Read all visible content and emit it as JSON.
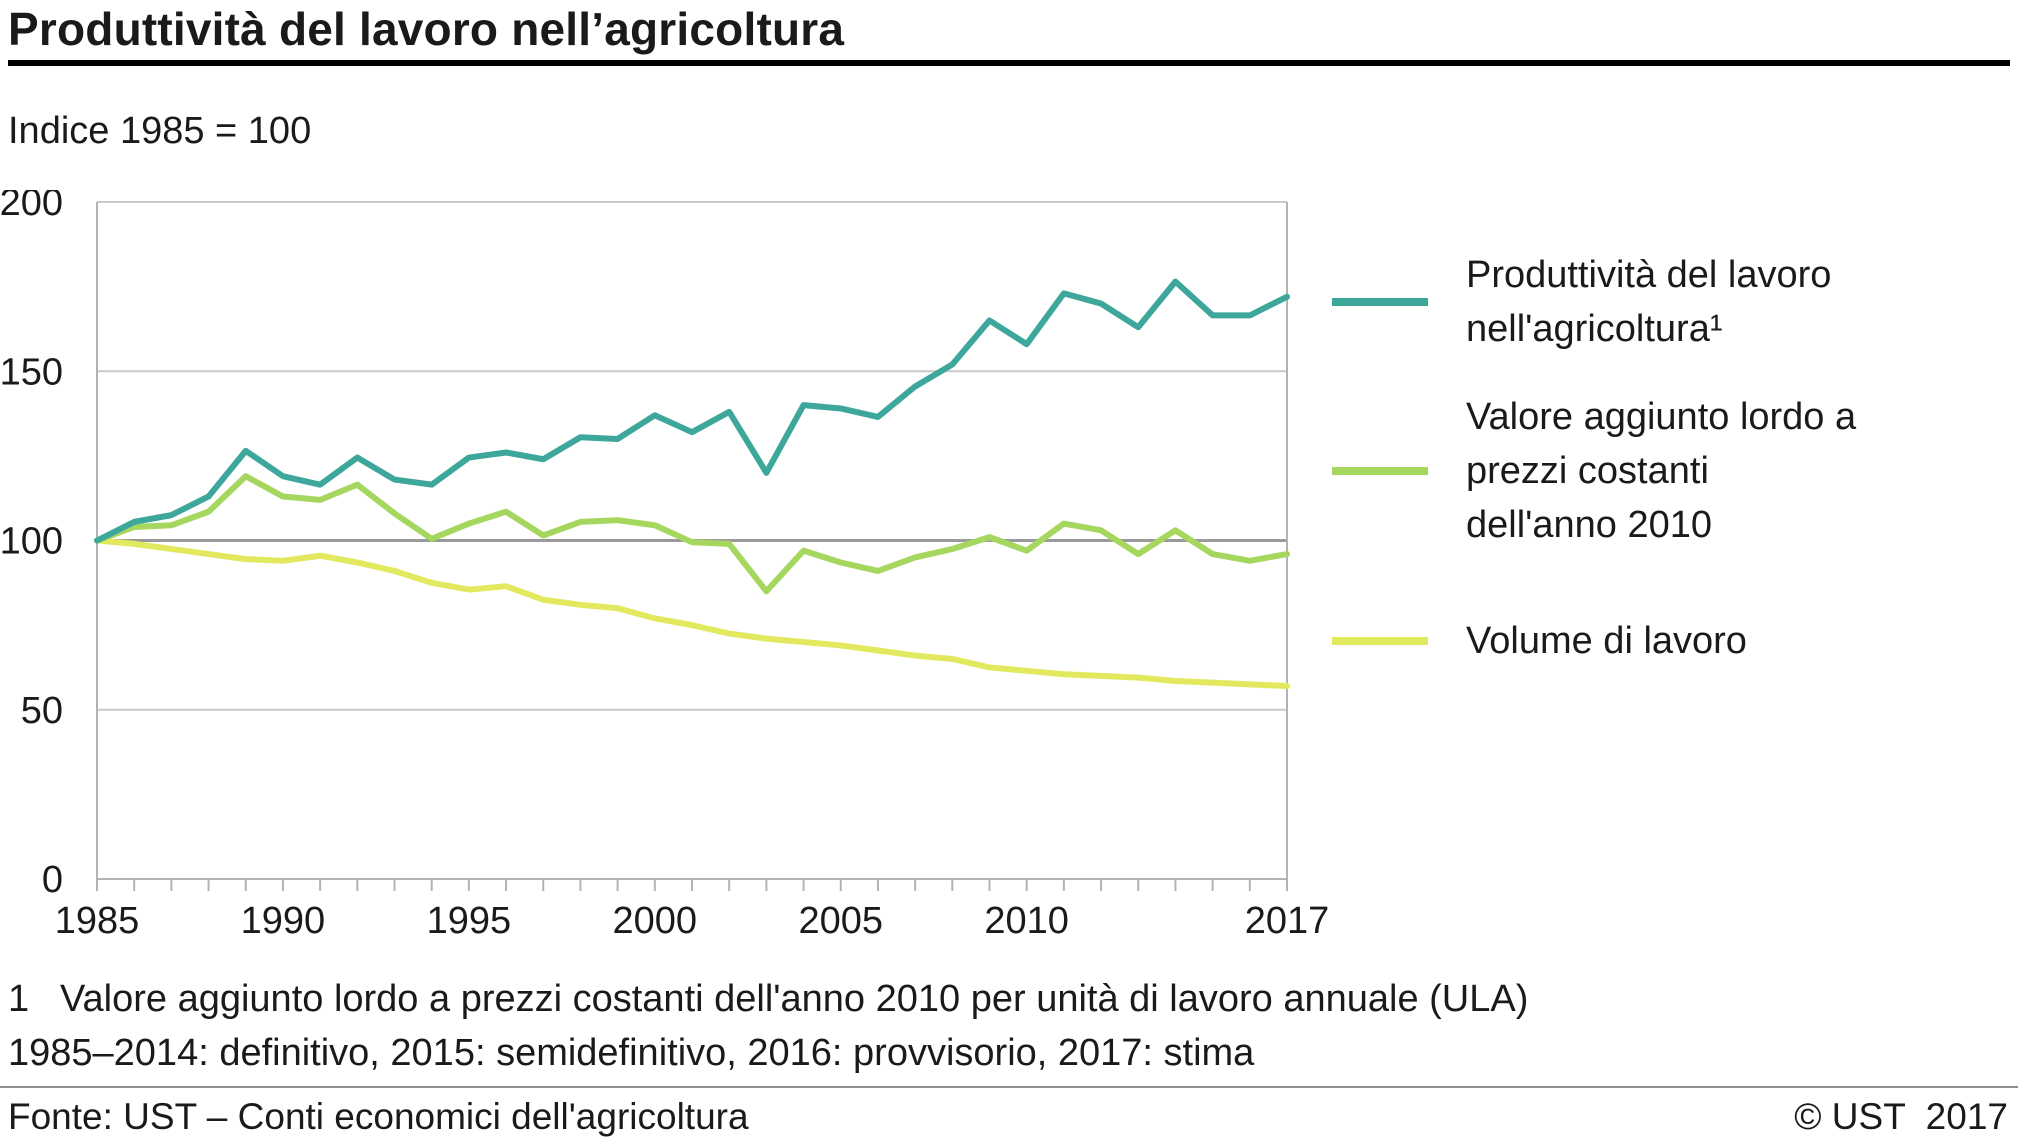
{
  "page": {
    "title": "Produttività del lavoro nell’agricoltura",
    "subtitle": "Indice 1985 = 100",
    "footnote1_marker": "1",
    "footnote1_text": "Valore aggiunto lordo a prezzi costanti dell'anno 2010 per unità di lavoro annuale (ULA)",
    "footnote2": "1985–2014: definitivo, 2015: semidefinitivo, 2016: provvisorio, 2017: stima",
    "source": "Fonte: UST – Conti economici dell'agricoltura",
    "copyright": "© UST  2017"
  },
  "chart_data": {
    "type": "line",
    "title": "Produttività del lavoro nell’agricoltura",
    "subtitle": "Indice 1985 = 100",
    "xlabel": "",
    "ylabel": "Indice 1985 = 100",
    "ylim": [
      0,
      200
    ],
    "yticks": [
      0,
      50,
      100,
      150,
      200
    ],
    "xticks": [
      1985,
      1990,
      1995,
      2000,
      2005,
      2010,
      2017
    ],
    "baseline": 100,
    "grid": true,
    "legend_position": "right",
    "colors": {
      "grid": "#c9c9c9",
      "baseline_grid": "#9a9a9a",
      "axis_border": "#b3b3b3",
      "text": "#1a1a1a"
    },
    "x": [
      1985,
      1986,
      1987,
      1988,
      1989,
      1990,
      1991,
      1992,
      1993,
      1994,
      1995,
      1996,
      1997,
      1998,
      1999,
      2000,
      2001,
      2002,
      2003,
      2004,
      2005,
      2006,
      2007,
      2008,
      2009,
      2010,
      2011,
      2012,
      2013,
      2014,
      2015,
      2016,
      2017
    ],
    "series": [
      {
        "name": "Produttività del lavoro nell'agricoltura¹",
        "color": "#3ea79b",
        "values": [
          100,
          105.5,
          107.5,
          113,
          126.5,
          119,
          116.5,
          124.5,
          118,
          116.5,
          124.5,
          126,
          124,
          130.5,
          130,
          137,
          132,
          138,
          120,
          140,
          139,
          136.5,
          145.5,
          152,
          165,
          158,
          173,
          170,
          163,
          176.5,
          166.5,
          166.5,
          172
        ]
      },
      {
        "name": "Valore aggiunto lordo a prezzi costanti dell'anno 2010",
        "color": "#a5d65d",
        "values": [
          100,
          104,
          104.5,
          108.5,
          119,
          113,
          112,
          116.5,
          108,
          100.5,
          105,
          108.5,
          101.5,
          105.5,
          106,
          104.5,
          99.5,
          99,
          85,
          97,
          93.5,
          91,
          95,
          97.5,
          101,
          97,
          105,
          103,
          96,
          103,
          96,
          94,
          96
        ]
      },
      {
        "name": "Volume di lavoro",
        "color": "#e2e95f",
        "values": [
          100,
          99,
          97.5,
          96,
          94.5,
          94,
          95.5,
          93.5,
          91,
          87.5,
          85.5,
          86.5,
          82.5,
          81,
          80,
          77,
          75,
          72.5,
          71,
          70,
          69,
          67.5,
          66,
          65,
          62.5,
          61.5,
          60.5,
          60,
          59.5,
          58.5,
          58,
          57.5,
          57
        ]
      }
    ],
    "legend": [
      {
        "lines": [
          "Produttività del lavoro",
          "nell'agricoltura¹"
        ]
      },
      {
        "lines": [
          "Valore aggiunto lordo a",
          "prezzi costanti",
          "dell'anno 2010"
        ]
      },
      {
        "lines": [
          "Volume di lavoro"
        ]
      }
    ]
  }
}
